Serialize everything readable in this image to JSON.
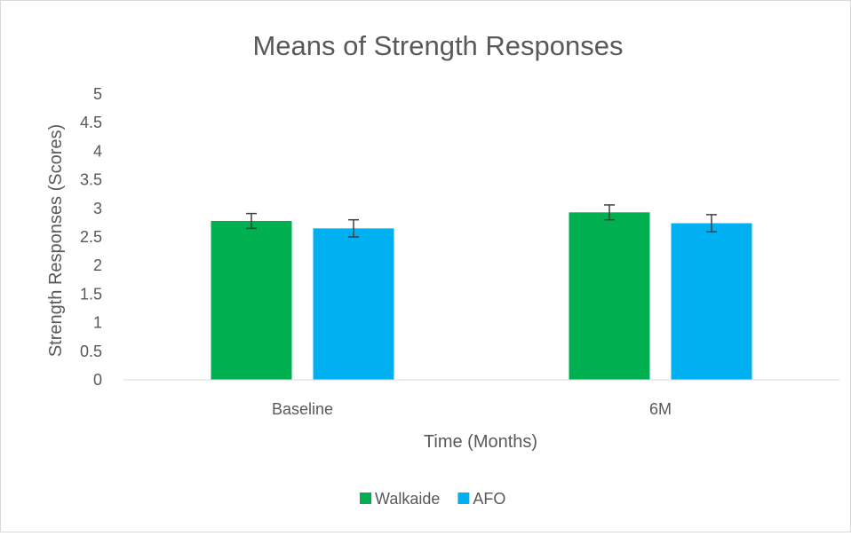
{
  "chart_data": {
    "type": "bar",
    "title": "Means of Strength Responses",
    "xlabel": "Time (Months)",
    "ylabel": "Strength Responses (Scores)",
    "categories": [
      "Baseline",
      "6M"
    ],
    "series": [
      {
        "name": "Walkaide",
        "color": "#00b050",
        "values": [
          2.78,
          2.93
        ],
        "error": [
          0.13,
          0.13
        ]
      },
      {
        "name": "AFO",
        "color": "#00b0f0",
        "values": [
          2.65,
          2.74
        ],
        "error": [
          0.15,
          0.15
        ]
      }
    ],
    "ylim": [
      0,
      5
    ],
    "yticks": [
      "0",
      "0.5",
      "1",
      "1.5",
      "2",
      "2.5",
      "3",
      "3.5",
      "4",
      "4.5",
      "5"
    ],
    "grid": false,
    "legend_position": "bottom"
  }
}
